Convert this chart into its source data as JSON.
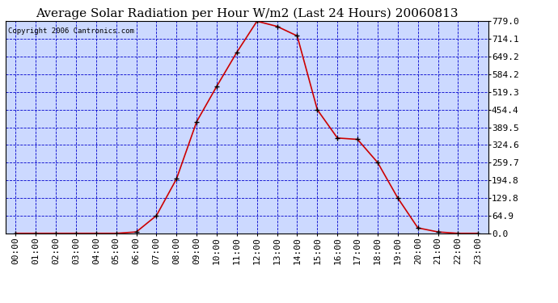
{
  "title": "Average Solar Radiation per Hour W/m2 (Last 24 Hours) 20060813",
  "copyright": "Copyright 2006 Cantronics.com",
  "hours": [
    "00:00",
    "01:00",
    "02:00",
    "03:00",
    "04:00",
    "05:00",
    "06:00",
    "07:00",
    "08:00",
    "09:00",
    "10:00",
    "11:00",
    "12:00",
    "13:00",
    "14:00",
    "15:00",
    "16:00",
    "17:00",
    "18:00",
    "19:00",
    "20:00",
    "21:00",
    "22:00",
    "23:00"
  ],
  "values": [
    0,
    0,
    0,
    0,
    0,
    0,
    5,
    65,
    200,
    410,
    540,
    665,
    779,
    760,
    725,
    454,
    350,
    345,
    260,
    130,
    20,
    5,
    0,
    0
  ],
  "y_ticks": [
    0.0,
    64.9,
    129.8,
    194.8,
    259.7,
    324.6,
    389.5,
    454.4,
    519.3,
    584.2,
    649.2,
    714.1,
    779.0
  ],
  "y_tick_labels": [
    "0.0",
    "64.9",
    "129.8",
    "194.8",
    "259.7",
    "324.6",
    "389.5",
    "454.4",
    "519.3",
    "584.2",
    "649.2",
    "714.1",
    "779.0"
  ],
  "ylim": [
    0,
    779.0
  ],
  "line_color": "#cc0000",
  "marker_color": "#000000",
  "bg_color": "#ccd9ff",
  "grid_color": "#0000cc",
  "title_fontsize": 11,
  "copyright_fontsize": 6.5,
  "tick_fontsize": 8
}
